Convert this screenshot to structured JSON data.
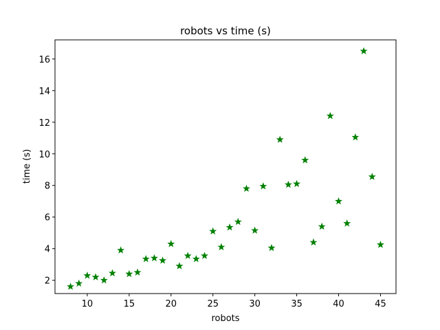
{
  "chart_data": {
    "type": "scatter",
    "title": "robots vs time (s)",
    "xlabel": "robots",
    "ylabel": "time (s)",
    "xlim": [
      6.15,
      46.85
    ],
    "ylim": [
      1.16,
      17.21
    ],
    "xticks": [
      10,
      15,
      20,
      25,
      30,
      35,
      40,
      45
    ],
    "yticks": [
      2,
      4,
      6,
      8,
      10,
      12,
      14,
      16
    ],
    "grid": false,
    "marker": "star",
    "color": "#008000",
    "series": [
      {
        "points": [
          {
            "x": 8,
            "y": 1.6
          },
          {
            "x": 9,
            "y": 1.8
          },
          {
            "x": 10,
            "y": 2.3
          },
          {
            "x": 11,
            "y": 2.2
          },
          {
            "x": 12,
            "y": 2.0
          },
          {
            "x": 13,
            "y": 2.45
          },
          {
            "x": 14,
            "y": 3.9
          },
          {
            "x": 15,
            "y": 2.4
          },
          {
            "x": 16,
            "y": 2.5
          },
          {
            "x": 17,
            "y": 3.35
          },
          {
            "x": 18,
            "y": 3.4
          },
          {
            "x": 19,
            "y": 3.25
          },
          {
            "x": 20,
            "y": 4.3
          },
          {
            "x": 21,
            "y": 2.9
          },
          {
            "x": 22,
            "y": 3.55
          },
          {
            "x": 23,
            "y": 3.35
          },
          {
            "x": 24,
            "y": 3.55
          },
          {
            "x": 25,
            "y": 5.1
          },
          {
            "x": 26,
            "y": 4.1
          },
          {
            "x": 27,
            "y": 5.35
          },
          {
            "x": 28,
            "y": 5.7
          },
          {
            "x": 29,
            "y": 7.8
          },
          {
            "x": 30,
            "y": 5.15
          },
          {
            "x": 31,
            "y": 7.95
          },
          {
            "x": 32,
            "y": 4.05
          },
          {
            "x": 33,
            "y": 10.9
          },
          {
            "x": 34,
            "y": 8.05
          },
          {
            "x": 35,
            "y": 8.1
          },
          {
            "x": 36,
            "y": 9.6
          },
          {
            "x": 37,
            "y": 4.4
          },
          {
            "x": 38,
            "y": 5.4
          },
          {
            "x": 39,
            "y": 12.4
          },
          {
            "x": 40,
            "y": 7.0
          },
          {
            "x": 41,
            "y": 5.6
          },
          {
            "x": 42,
            "y": 11.05
          },
          {
            "x": 43,
            "y": 16.5
          },
          {
            "x": 44,
            "y": 8.55
          },
          {
            "x": 45,
            "y": 4.25
          }
        ]
      }
    ]
  }
}
